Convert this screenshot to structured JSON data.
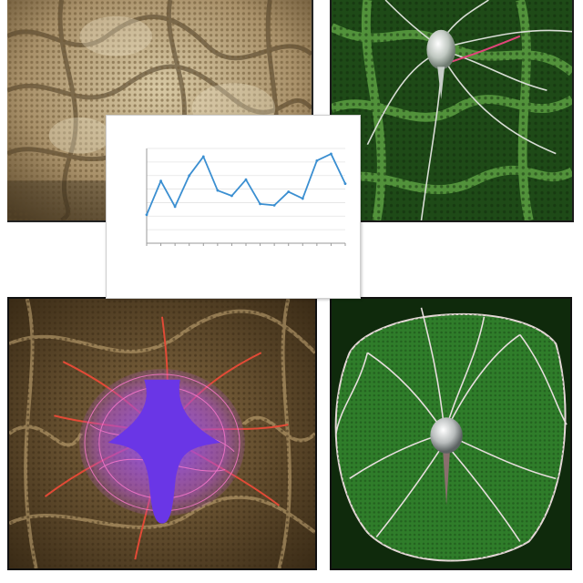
{
  "captions": {
    "top_left": "",
    "top_right": "",
    "bottom_right": ""
  },
  "chart": {
    "title": "",
    "subtitle": "",
    "xlabel": "",
    "ylabel": ""
  },
  "chart_data": {
    "type": "line",
    "values": [
      2.1,
      4.6,
      2.7,
      5.0,
      6.4,
      3.9,
      3.5,
      4.7,
      2.9,
      2.8,
      3.8,
      3.3,
      6.1,
      6.6,
      4.4
    ],
    "ylim": [
      0,
      7
    ],
    "grid": true,
    "color": "#3b8fd1"
  },
  "colors": {
    "cell_violet": "#7a3fe0",
    "dendrite_red": "#e0453a",
    "leaf_green": "#2f7d2a",
    "texture_tan": "#a9916a"
  }
}
